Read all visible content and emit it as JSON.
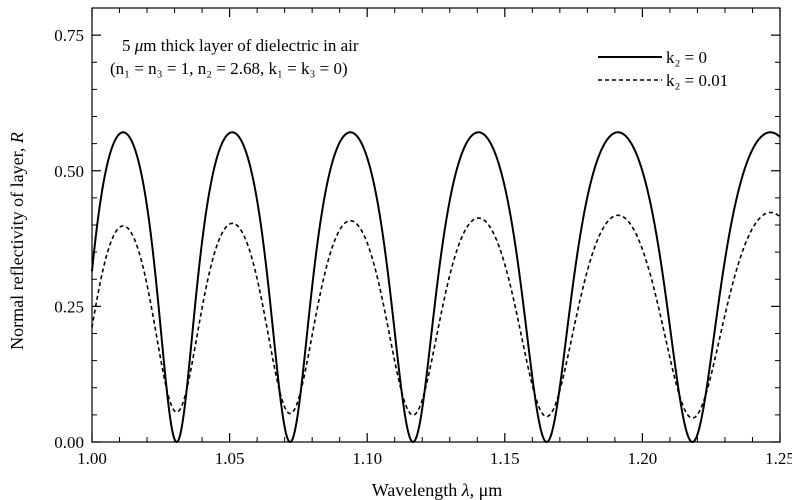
{
  "chart_data": {
    "type": "line",
    "xlabel": {
      "prefix": "Wavelength ",
      "symbol": "λ",
      "suffix": ", μm"
    },
    "ylabel": {
      "prefix": "Normal reflectivity of layer, ",
      "symbol": "R"
    },
    "xlim": [
      1.0,
      1.25
    ],
    "ylim": [
      0.0,
      0.8
    ],
    "x_ticks": [
      1.0,
      1.05,
      1.1,
      1.15,
      1.2,
      1.25
    ],
    "x_tick_labels": [
      "1.00",
      "1.05",
      "1.10",
      "1.15",
      "1.20",
      "1.25"
    ],
    "y_ticks": [
      0.0,
      0.25,
      0.5,
      0.75
    ],
    "y_tick_labels": [
      "0.00",
      "0.25",
      "0.50",
      "0.75"
    ],
    "grid": false,
    "legend_position": "top-right",
    "annotation": {
      "line1": {
        "number": "5 ",
        "mu": "μ",
        "rest": "m thick layer of dielectric in air"
      },
      "line2": "(n₁ = n₃ = 1, n₂ = 2.68, k₁ = k₃ = 0)"
    },
    "model": {
      "thickness_um": 5,
      "n1": 1,
      "n2": 2.68,
      "n3": 1,
      "k1": 0,
      "k3": 0
    },
    "series": [
      {
        "name": "k₂ = 0",
        "k2": 0,
        "style": "solid",
        "x": [
          1.0,
          1.011,
          1.031,
          1.051,
          1.072,
          1.094,
          1.117,
          1.141,
          1.166,
          1.192,
          1.218,
          1.246
        ],
        "y": [
          0.32,
          0.572,
          0.0,
          0.572,
          0.0,
          0.572,
          0.0,
          0.572,
          0.0,
          0.572,
          0.0,
          0.572
        ]
      },
      {
        "name": "k₂ = 0.01",
        "k2": 0.01,
        "style": "dashed",
        "x": [
          1.0,
          1.011,
          1.031,
          1.051,
          1.072,
          1.094,
          1.117,
          1.141,
          1.166,
          1.192,
          1.218,
          1.246
        ],
        "y": [
          0.21,
          0.4,
          0.05,
          0.403,
          0.05,
          0.407,
          0.05,
          0.412,
          0.05,
          0.416,
          0.045,
          0.42
        ]
      }
    ]
  },
  "colors": {
    "line": "#000000",
    "background": "#ffffff"
  }
}
